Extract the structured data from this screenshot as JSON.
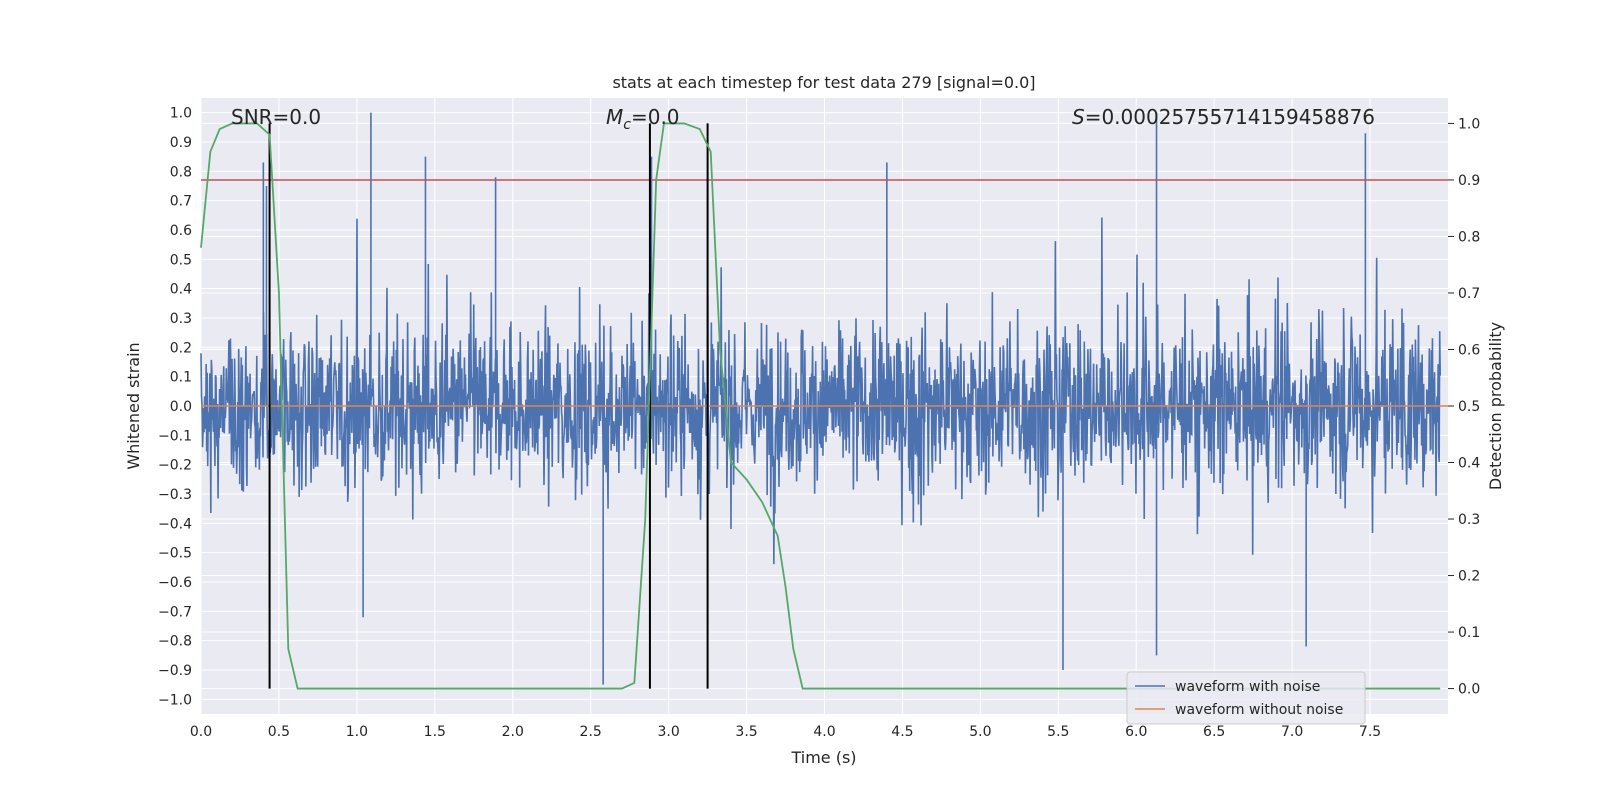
{
  "chart_data": {
    "type": "line",
    "title": "stats at each timestep for test data 279 [signal=0.0]",
    "xlabel": "Time (s)",
    "ylabel": "Whitened strain",
    "y2label": "Detection probability",
    "xlim": [
      0.0,
      8.0
    ],
    "ylim": [
      -1.05,
      1.05
    ],
    "y2lim": [
      -0.045,
      1.045
    ],
    "xticks": [
      "0.0",
      "0.5",
      "1.0",
      "1.5",
      "2.0",
      "2.5",
      "3.0",
      "3.5",
      "4.0",
      "4.5",
      "5.0",
      "5.5",
      "6.0",
      "6.5",
      "7.0",
      "7.5"
    ],
    "yticks": [
      "1.0",
      "0.9",
      "0.8",
      "0.7",
      "0.6",
      "0.5",
      "0.4",
      "0.3",
      "0.2",
      "0.1",
      "0.0",
      "−0.1",
      "−0.2",
      "−0.3",
      "−0.4",
      "−0.5",
      "−0.6",
      "−0.7",
      "−0.8",
      "−0.9",
      "−1.0"
    ],
    "y2ticks": [
      "1.0",
      "0.9",
      "0.8",
      "0.7",
      "0.6",
      "0.5",
      "0.4",
      "0.3",
      "0.2",
      "0.1",
      "0.0"
    ],
    "grid": true,
    "legend_position": "lower-right",
    "annotations": {
      "snr": "SNR=0.0",
      "mc_symbol": "M",
      "mc_subscript": "c",
      "mc_value": "=0.0",
      "s_symbol": "S",
      "s_value": "=0.0002575571415945887​6"
    },
    "series": [
      {
        "name": "waveform with noise",
        "color": "#4c72b0",
        "kind": "dense noise, amplitude envelope mostly within ±0.5, sparse spikes up to ±1.0",
        "spike_peaks": [
          {
            "x": 0.4,
            "y": 0.83
          },
          {
            "x": 0.42,
            "y": 0.75
          },
          {
            "x": 1.09,
            "y": 1.0
          },
          {
            "x": 1.44,
            "y": 0.85
          },
          {
            "x": 1.89,
            "y": 0.78
          },
          {
            "x": 2.89,
            "y": 0.85
          },
          {
            "x": 4.4,
            "y": 0.83
          },
          {
            "x": 6.13,
            "y": 1.0
          },
          {
            "x": 7.47,
            "y": 0.93
          },
          {
            "x": 0.44,
            "y": -0.69
          },
          {
            "x": 2.58,
            "y": -0.95
          },
          {
            "x": 5.53,
            "y": -0.9
          },
          {
            "x": 6.13,
            "y": -0.85
          },
          {
            "x": 7.09,
            "y": -0.82
          },
          {
            "x": 1.04,
            "y": -0.72
          }
        ]
      },
      {
        "name": "waveform without noise",
        "color": "#dd8452",
        "x": [
          0.0,
          8.0
        ],
        "y": [
          0.0,
          0.0
        ]
      },
      {
        "name": "detection probability",
        "axis": "right",
        "color": "#55a868",
        "x": [
          0.0,
          0.06,
          0.12,
          0.2,
          0.36,
          0.44,
          0.5,
          0.56,
          0.62,
          0.7,
          2.7,
          2.78,
          2.85,
          2.92,
          2.97,
          3.1,
          3.2,
          3.27,
          3.33,
          3.4,
          3.5,
          3.6,
          3.7,
          3.75,
          3.8,
          3.86,
          7.95
        ],
        "y": [
          0.78,
          0.95,
          0.99,
          1.0,
          1.0,
          0.98,
          0.7,
          0.07,
          0.0,
          0.0,
          0.0,
          0.01,
          0.3,
          0.9,
          1.0,
          1.0,
          0.99,
          0.95,
          0.6,
          0.4,
          0.37,
          0.33,
          0.27,
          0.18,
          0.07,
          0.0,
          0.0
        ]
      }
    ],
    "threshold_line": {
      "axis": "right",
      "y": 0.9,
      "color": "#c44e52"
    },
    "vertical_markers": {
      "x": [
        0.44,
        2.88,
        3.25
      ],
      "color": "#000000"
    }
  }
}
